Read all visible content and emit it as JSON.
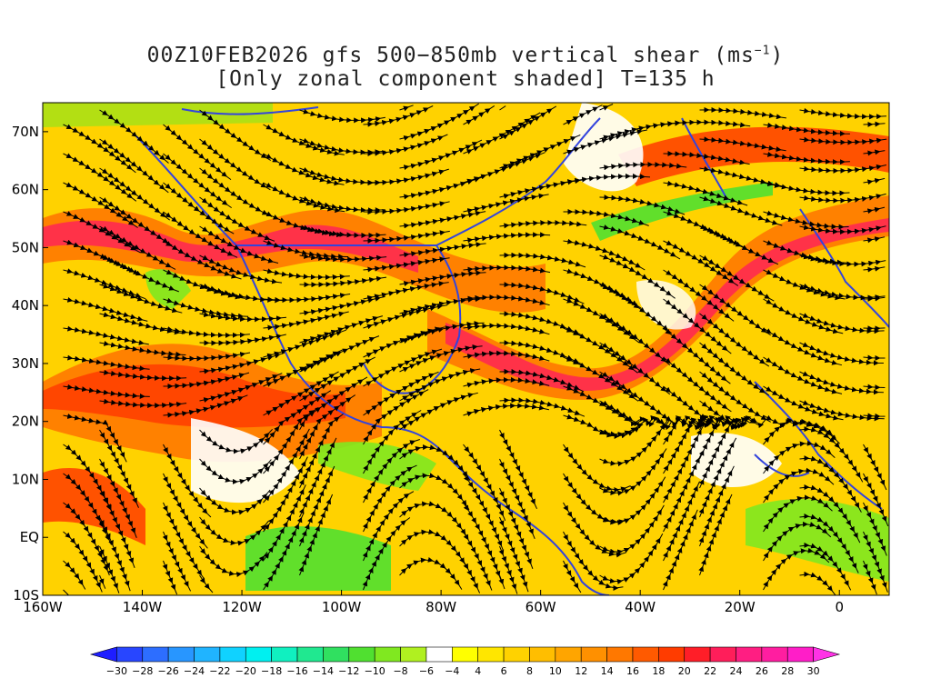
{
  "title": {
    "line1_main": "00Z10FEB2026 gfs 500−850mb vertical shear (ms",
    "line1_sup": "−1",
    "line1_end": ")",
    "line2": "[Only zonal component shaded] T=135 h"
  },
  "map": {
    "lon_range": [
      -160,
      10
    ],
    "lat_range": [
      -10,
      75
    ],
    "lon_labels": [
      {
        "lon": -160,
        "text": "160W"
      },
      {
        "lon": -140,
        "text": "140W"
      },
      {
        "lon": -120,
        "text": "120W"
      },
      {
        "lon": -100,
        "text": "100W"
      },
      {
        "lon": -80,
        "text": "80W"
      },
      {
        "lon": -60,
        "text": "60W"
      },
      {
        "lon": -40,
        "text": "40W"
      },
      {
        "lon": -20,
        "text": "20W"
      },
      {
        "lon": 0,
        "text": "0"
      }
    ],
    "lat_labels": [
      {
        "lat": 70,
        "text": "70N"
      },
      {
        "lat": 60,
        "text": "60N"
      },
      {
        "lat": 50,
        "text": "50N"
      },
      {
        "lat": 40,
        "text": "40N"
      },
      {
        "lat": 30,
        "text": "30N"
      },
      {
        "lat": 20,
        "text": "20N"
      },
      {
        "lat": 10,
        "text": "10N"
      },
      {
        "lat": 0,
        "text": "EQ"
      },
      {
        "lat": -10,
        "text": "10S"
      }
    ],
    "coastline_color": "#3344dd",
    "streamline_color": "#000000"
  },
  "colorbar": {
    "labels": [
      "-30",
      "-28",
      "-26",
      "-24",
      "-22",
      "-20",
      "-18",
      "-16",
      "-14",
      "-12",
      "-10",
      "-8",
      "-6",
      "-4",
      "4",
      "6",
      "8",
      "10",
      "12",
      "14",
      "16",
      "18",
      "20",
      "22",
      "24",
      "26",
      "28",
      "30"
    ],
    "colors": [
      "#1e1eff",
      "#2846ff",
      "#2d6eff",
      "#2896ff",
      "#20b4ff",
      "#10d2ff",
      "#00f0f0",
      "#10f0c0",
      "#20e890",
      "#30e060",
      "#50e030",
      "#80e820",
      "#b0f020",
      "#ffffff",
      "#ffff00",
      "#ffe600",
      "#ffd200",
      "#ffbe00",
      "#ffa500",
      "#ff9000",
      "#ff7800",
      "#ff5a00",
      "#ff3c00",
      "#ff1e28",
      "#ff1e5a",
      "#ff1e82",
      "#ff1ea0",
      "#ff1ec8",
      "#ff32e6"
    ]
  }
}
